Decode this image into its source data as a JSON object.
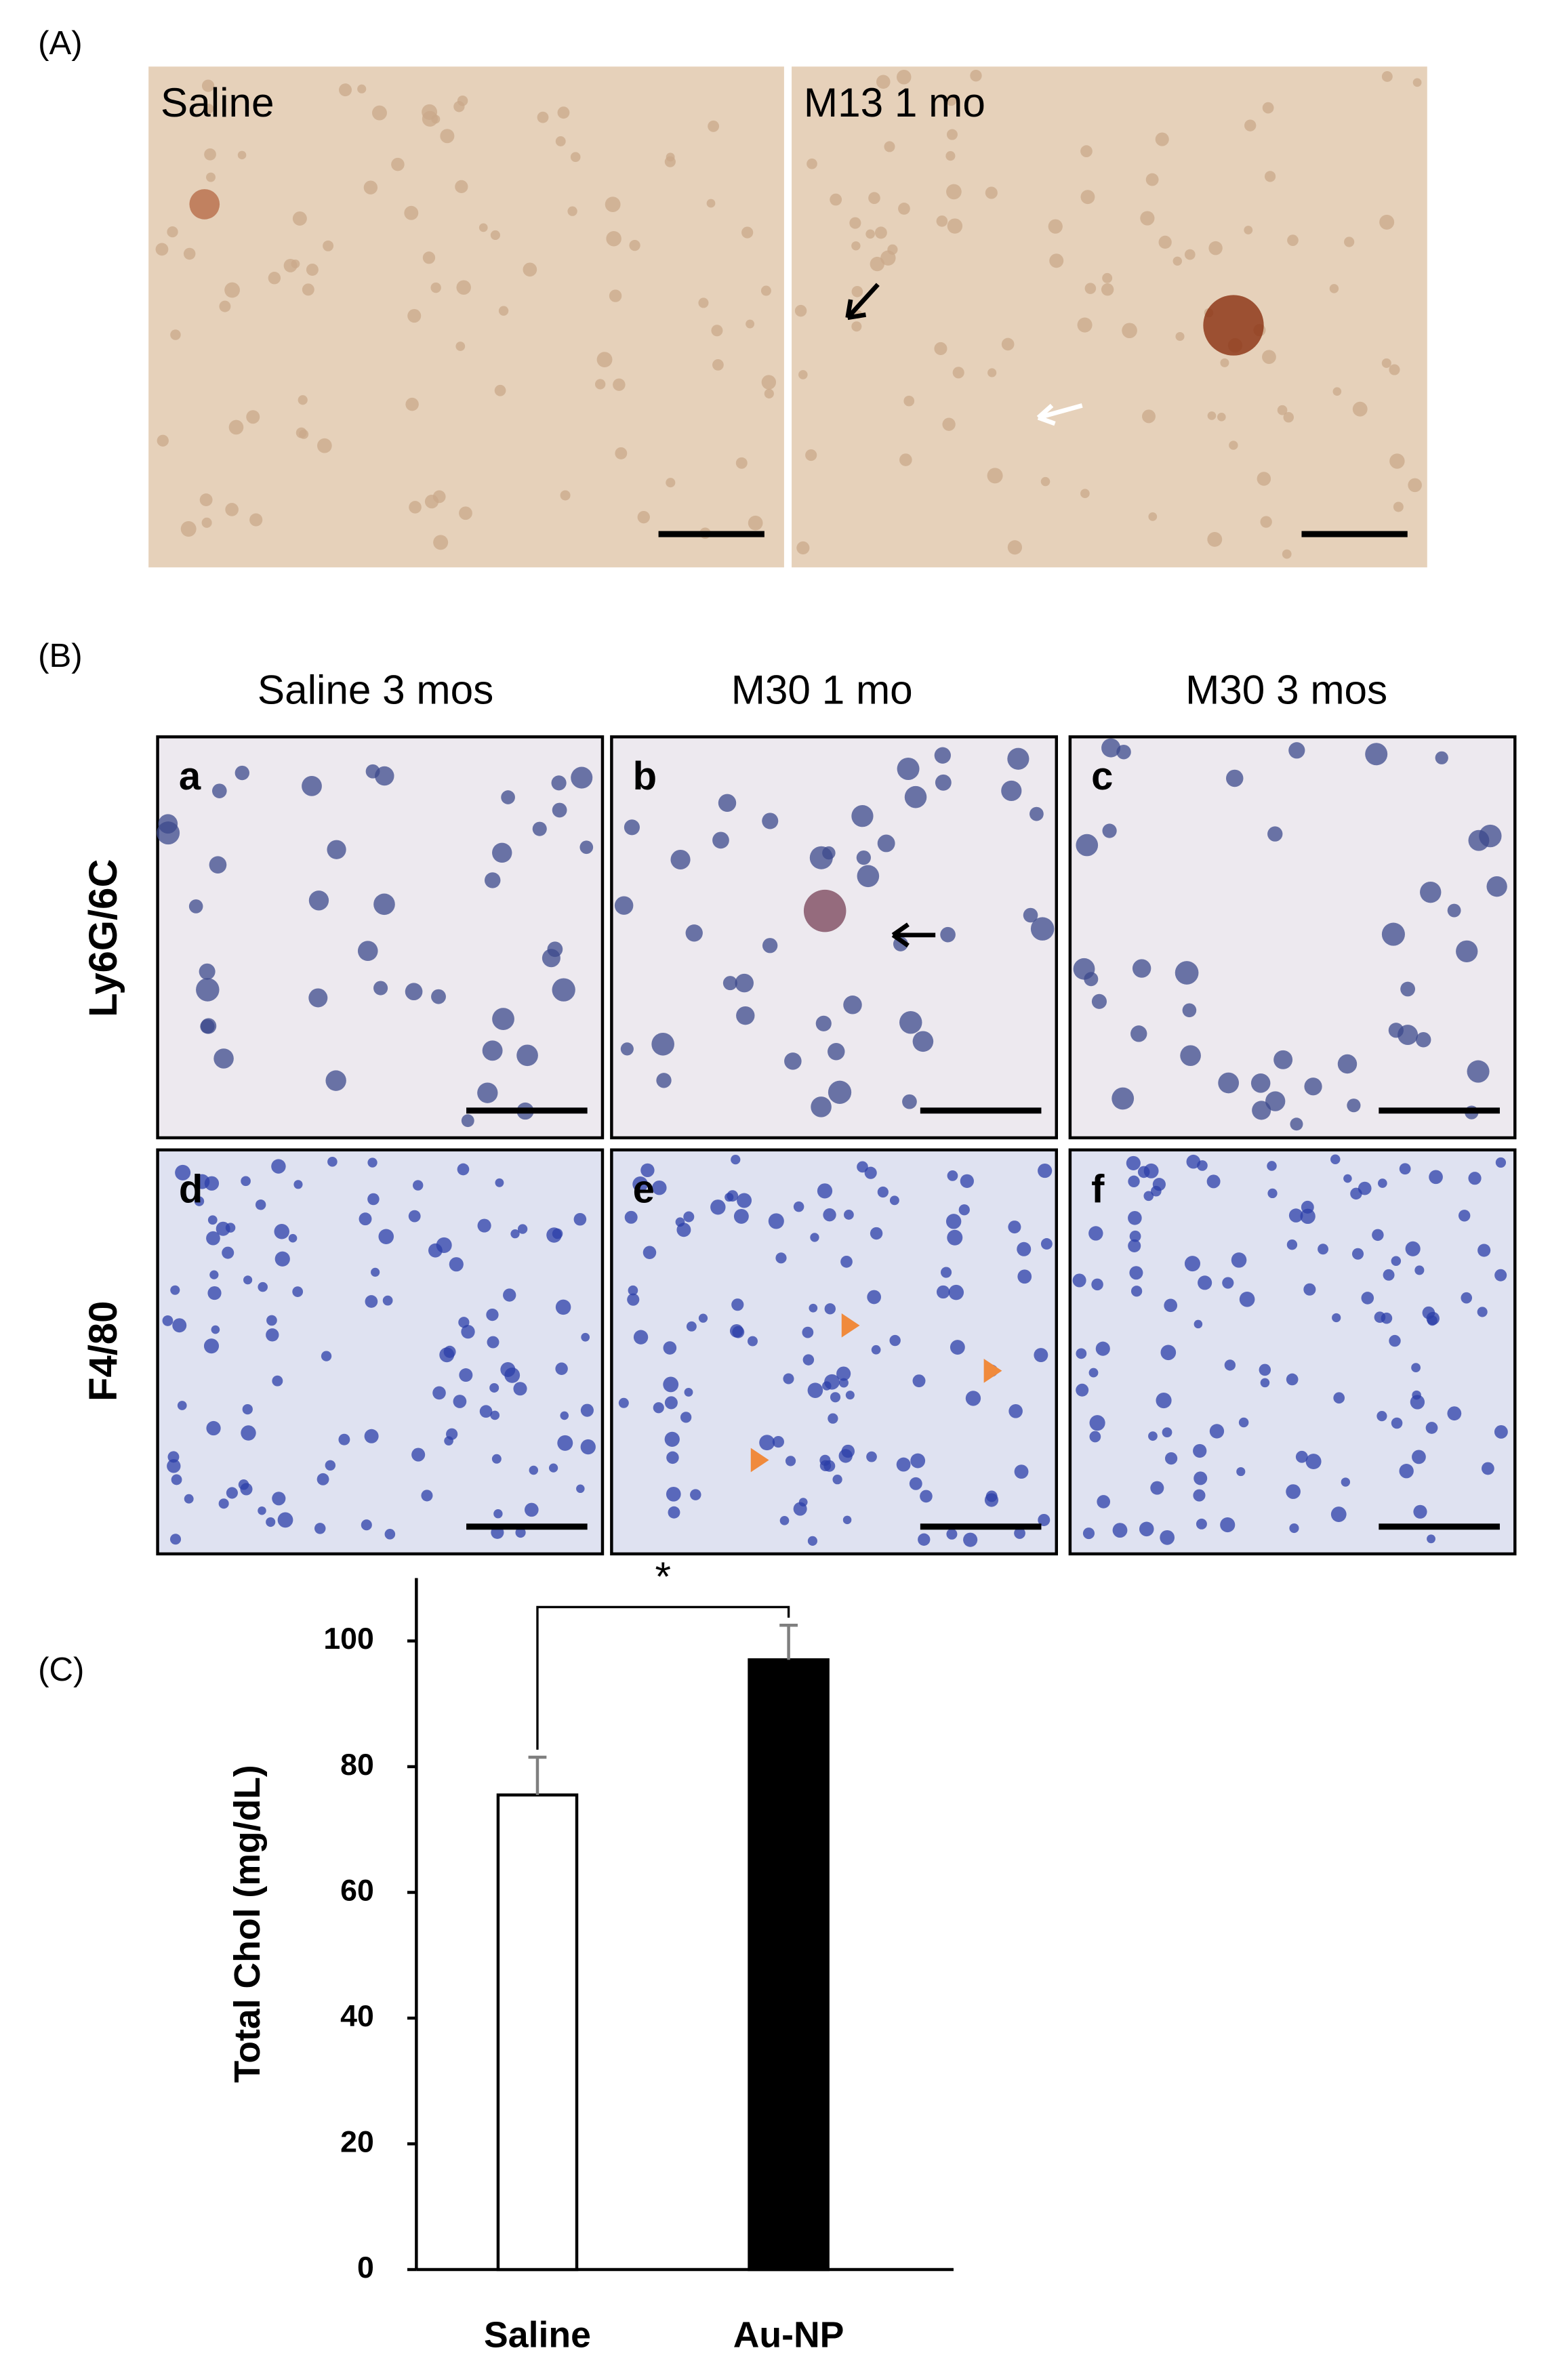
{
  "panel_a": {
    "label": "(A)",
    "images": [
      "Saline",
      "M13 1 mo"
    ]
  },
  "panel_b": {
    "label": "(B)",
    "columns": [
      "Saline  3 mos",
      "M30   1 mo",
      "M30   3 mos"
    ],
    "rows": [
      "Ly6G/6C",
      "F4/80"
    ],
    "letters": [
      "a",
      "b",
      "c",
      "d",
      "e",
      "f"
    ]
  },
  "panel_c": {
    "label": "(C)"
  },
  "chart_data": {
    "type": "bar",
    "categories": [
      "Saline",
      "Au-NP"
    ],
    "values": [
      75.5,
      97
    ],
    "errors": [
      6,
      5.5
    ],
    "colors": [
      "#ffffff",
      "#000000"
    ],
    "ylabel": "Total Chol (mg/dL)",
    "ylim": [
      0,
      110
    ],
    "yticks": [
      0,
      20,
      40,
      60,
      80,
      100
    ],
    "annotation": "*"
  }
}
